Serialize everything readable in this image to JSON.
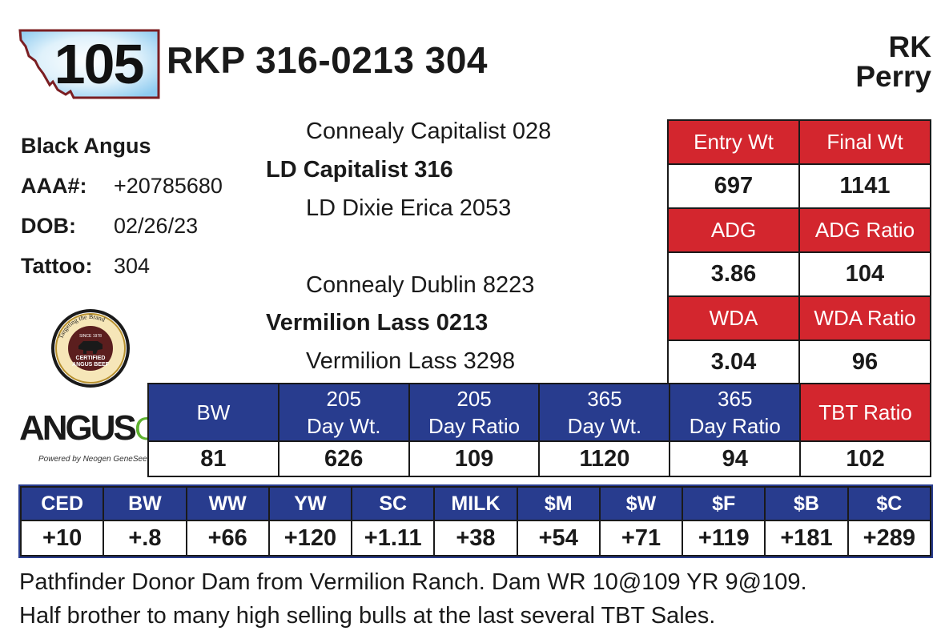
{
  "header": {
    "lot_number": "105",
    "animal_id": "RKP 316-0213 304",
    "consignor_line1": "RK",
    "consignor_line2": "Perry"
  },
  "info": {
    "breed": "Black Angus",
    "aaa_label": "AAA#:",
    "aaa_value": "+20785680",
    "dob_label": "DOB:",
    "dob_value": "02/26/23",
    "tattoo_label": "Tattoo:",
    "tattoo_value": "304"
  },
  "pedigree": {
    "sire_sire": "Connealy Capitalist 028",
    "sire": "LD Capitalist 316",
    "sire_dam": "LD Dixie Erica 2053",
    "dam_sire": "Connealy Dublin 8223",
    "dam": "Vermilion Lass 0213",
    "dam_dam": "Vermilion Lass 3298"
  },
  "logos": {
    "cab_text_top": "Targeting the Brand",
    "cab_text_since": "SINCE 1978",
    "cab_text_main1": "CERTIFIED",
    "cab_text_main2": "ANGUS BEEF",
    "angus_gs_main": "ANGUS",
    "angus_gs_suffix": "GS",
    "angus_gs_sub": "Powered by Neogen GeneSeek"
  },
  "right_stats": {
    "entry_wt_label": "Entry Wt",
    "final_wt_label": "Final Wt",
    "entry_wt": "697",
    "final_wt": "1141",
    "adg_label": "ADG",
    "adg_ratio_label": "ADG Ratio",
    "adg": "3.86",
    "adg_ratio": "104",
    "wda_label": "WDA",
    "wda_ratio_label": "WDA Ratio",
    "wda": "3.04",
    "wda_ratio": "96"
  },
  "performance": {
    "headers": [
      [
        "BW",
        ""
      ],
      [
        "205",
        "Day Wt."
      ],
      [
        "205",
        "Day Ratio"
      ],
      [
        "365",
        "Day Wt."
      ],
      [
        "365",
        "Day Ratio"
      ],
      [
        "TBT Ratio",
        ""
      ]
    ],
    "values": [
      "81",
      "626",
      "109",
      "1120",
      "94",
      "102"
    ]
  },
  "epd": {
    "headers": [
      "CED",
      "BW",
      "WW",
      "YW",
      "SC",
      "MILK",
      "$M",
      "$W",
      "$F",
      "$B",
      "$C"
    ],
    "values": [
      "+10",
      "+.8",
      "+66",
      "+120",
      "+1.11",
      "+38",
      "+54",
      "+71",
      "+119",
      "+181",
      "+289"
    ]
  },
  "comments": {
    "line1": "Pathfinder Donor Dam from Vermilion Ranch. Dam WR 10@109 YR 9@109.",
    "line2": "Half brother to many high selling bulls at the last several TBT Sales."
  },
  "colors": {
    "red": "#d3262e",
    "blue": "#283c8e",
    "badge_light": "#dff1fb",
    "badge_sky": "#9fd3f2",
    "badge_border": "#7b1e22"
  }
}
